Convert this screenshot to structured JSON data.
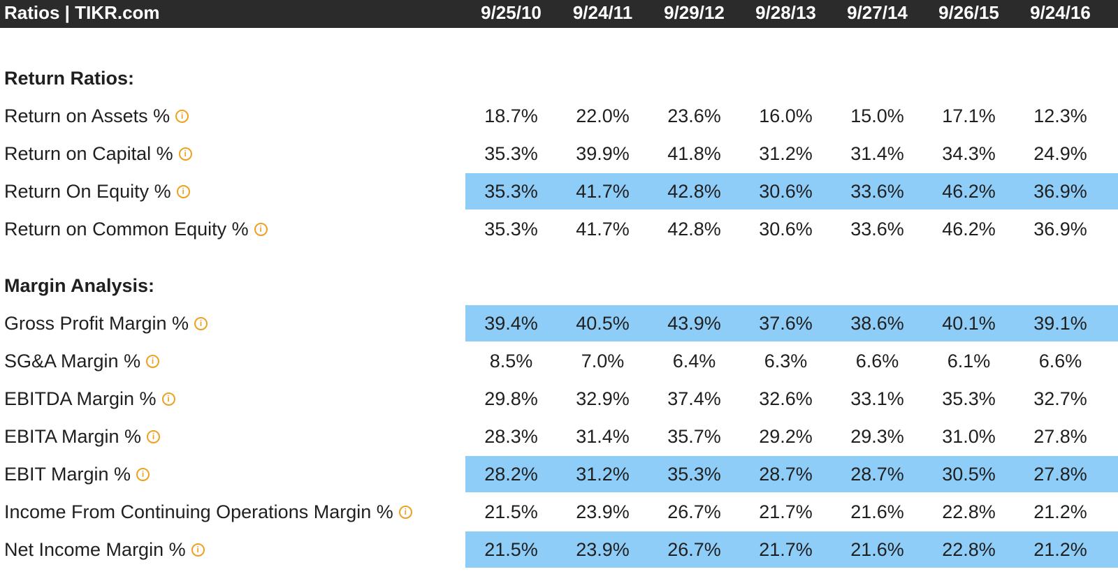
{
  "header": {
    "title": "Ratios | TIKR.com",
    "dates": [
      "9/25/10",
      "9/24/11",
      "9/29/12",
      "9/28/13",
      "9/27/14",
      "9/26/15",
      "9/24/16"
    ]
  },
  "colors": {
    "header_bg": "#2b2b2b",
    "highlight": "#8ecdf7",
    "info_icon": "#f0a020"
  },
  "icons": {
    "info": "info-circle-icon"
  },
  "return_ratios": {
    "title": "Return Ratios:",
    "rows": [
      {
        "label": "Return on Assets %",
        "highlighted": false,
        "values": [
          "18.7%",
          "22.0%",
          "23.6%",
          "16.0%",
          "15.0%",
          "17.1%",
          "12.3%"
        ]
      },
      {
        "label": "Return on Capital %",
        "highlighted": false,
        "values": [
          "35.3%",
          "39.9%",
          "41.8%",
          "31.2%",
          "31.4%",
          "34.3%",
          "24.9%"
        ]
      },
      {
        "label": "Return On Equity %",
        "highlighted": true,
        "values": [
          "35.3%",
          "41.7%",
          "42.8%",
          "30.6%",
          "33.6%",
          "46.2%",
          "36.9%"
        ]
      },
      {
        "label": "Return on Common Equity %",
        "highlighted": false,
        "values": [
          "35.3%",
          "41.7%",
          "42.8%",
          "30.6%",
          "33.6%",
          "46.2%",
          "36.9%"
        ]
      }
    ]
  },
  "margin_analysis": {
    "title": "Margin Analysis:",
    "rows": [
      {
        "label": "Gross Profit Margin %",
        "highlighted": true,
        "values": [
          "39.4%",
          "40.5%",
          "43.9%",
          "37.6%",
          "38.6%",
          "40.1%",
          "39.1%"
        ]
      },
      {
        "label": "SG&A Margin %",
        "highlighted": false,
        "values": [
          "8.5%",
          "7.0%",
          "6.4%",
          "6.3%",
          "6.6%",
          "6.1%",
          "6.6%"
        ]
      },
      {
        "label": "EBITDA Margin %",
        "highlighted": false,
        "values": [
          "29.8%",
          "32.9%",
          "37.4%",
          "32.6%",
          "33.1%",
          "35.3%",
          "32.7%"
        ]
      },
      {
        "label": "EBITA Margin %",
        "highlighted": false,
        "values": [
          "28.3%",
          "31.4%",
          "35.7%",
          "29.2%",
          "29.3%",
          "31.0%",
          "27.8%"
        ]
      },
      {
        "label": "EBIT Margin %",
        "highlighted": true,
        "values": [
          "28.2%",
          "31.2%",
          "35.3%",
          "28.7%",
          "28.7%",
          "30.5%",
          "27.8%"
        ]
      },
      {
        "label": "Income From Continuing Operations Margin %",
        "highlighted": false,
        "values": [
          "21.5%",
          "23.9%",
          "26.7%",
          "21.7%",
          "21.6%",
          "22.8%",
          "21.2%"
        ]
      },
      {
        "label": "Net Income Margin %",
        "highlighted": true,
        "values": [
          "21.5%",
          "23.9%",
          "26.7%",
          "21.7%",
          "21.6%",
          "22.8%",
          "21.2%"
        ]
      }
    ]
  }
}
